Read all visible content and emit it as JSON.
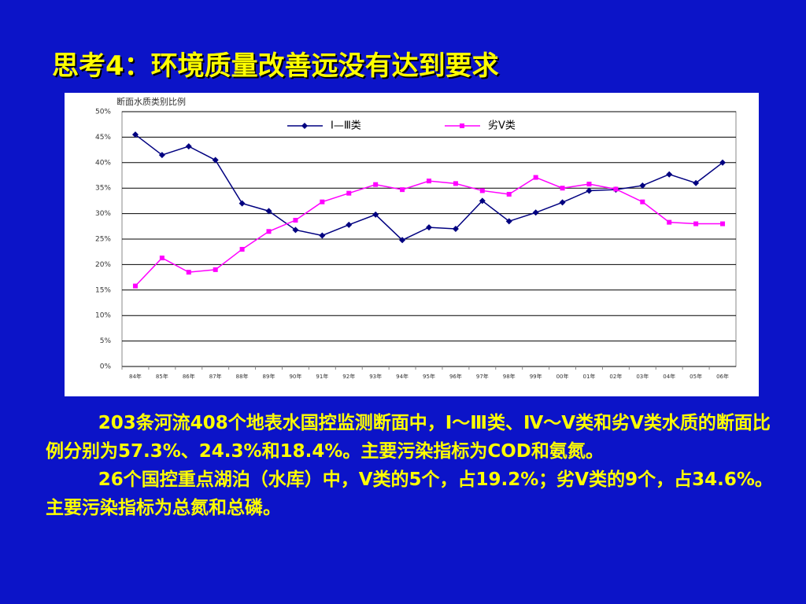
{
  "slide": {
    "title": "思考4：环境质量改善远没有达到要求",
    "paragraphs": [
      "203条河流408个地表水国控监测断面中，Ⅰ～Ⅲ类、Ⅳ～Ⅴ类和劣Ⅴ类水质的断面比例分别为57.3%、24.3%和18.4%。主要污染指标为COD和氨氮。",
      "26个国控重点湖泊（水库）中，Ⅴ类的5个，占19.2%；劣Ⅴ类的9个，占34.6%。主要污染指标为总氮和总磷。"
    ]
  },
  "chart_data": {
    "type": "line",
    "title": "断面水质类别比例",
    "categories": [
      "84年",
      "85年",
      "86年",
      "87年",
      "88年",
      "89年",
      "90年",
      "91年",
      "92年",
      "93年",
      "94年",
      "95年",
      "96年",
      "97年",
      "98年",
      "99年",
      "00年",
      "01年",
      "02年",
      "03年",
      "04年",
      "05年",
      "06年"
    ],
    "series": [
      {
        "name": "Ⅰ—Ⅲ类",
        "color": "#000080",
        "values": [
          45.5,
          41.5,
          43.2,
          40.5,
          32,
          30.5,
          26.8,
          25.7,
          27.8,
          29.8,
          24.8,
          27.3,
          27,
          32.5,
          28.5,
          30.2,
          32.2,
          34.5,
          34.7,
          35.5,
          37.7,
          36,
          40
        ]
      },
      {
        "name": "劣Ⅴ类",
        "color": "#ff00ff",
        "values": [
          15.8,
          21.3,
          18.5,
          19,
          23,
          26.5,
          28.7,
          32.3,
          34,
          35.7,
          34.7,
          36.4,
          35.9,
          34.5,
          33.8,
          37.1,
          35,
          35.8,
          34.8,
          32.3,
          28.3,
          28,
          28
        ]
      }
    ],
    "ylim": [
      0,
      50
    ],
    "yticks": [
      {
        "value": 0,
        "label": "0%"
      },
      {
        "value": 5,
        "label": "5%"
      },
      {
        "value": 10,
        "label": "10%"
      },
      {
        "value": 15,
        "label": "15%"
      },
      {
        "value": 20,
        "label": "20%"
      },
      {
        "value": 25,
        "label": "25%"
      },
      {
        "value": 30,
        "label": "30%"
      },
      {
        "value": 35,
        "label": "35%"
      },
      {
        "value": 40,
        "label": "40%"
      },
      {
        "value": 45,
        "label": "45%"
      },
      {
        "value": 50,
        "label": "50%"
      }
    ],
    "grid": true,
    "legend": "top"
  }
}
